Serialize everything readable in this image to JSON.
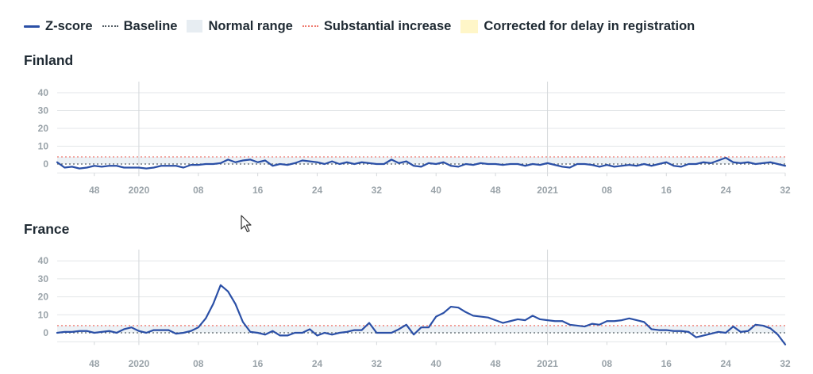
{
  "legend": {
    "zscore": "Z-score",
    "baseline": "Baseline",
    "normal_range": "Normal range",
    "substantial_increase": "Substantial increase",
    "corrected": "Corrected for delay in registration"
  },
  "colors": {
    "zscore": "#2a4fa6",
    "baseline": "#555f66",
    "normal_range": "#e7edf2",
    "substantial_increase": "#ef7b70",
    "corrected": "#fff6c8",
    "grid": "#e3e6e8",
    "year_line": "#d4d7da"
  },
  "chart_data": [
    {
      "type": "line",
      "title": "Finland",
      "xlabel": "",
      "ylabel": "",
      "ylim": [
        -5,
        45
      ],
      "y_ticks": [
        0,
        10,
        20,
        30,
        40
      ],
      "x_ticks": [
        "48",
        "2020",
        "08",
        "16",
        "24",
        "32",
        "40",
        "48",
        "2021",
        "08",
        "16",
        "24",
        "32"
      ],
      "x_tick_week_index": [
        5,
        11,
        19,
        27,
        35,
        43,
        51,
        59,
        66,
        74,
        82,
        90,
        98
      ],
      "year_boundary_week_index": [
        11,
        66
      ],
      "baseline": 0,
      "substantial_increase": 4,
      "corrected_from_week_index": 98,
      "series": [
        {
          "name": "Z-score",
          "values": [
            1,
            -2,
            -1.5,
            -2.5,
            -2,
            -1,
            -1.5,
            -1,
            -1,
            -2,
            -2,
            -2,
            -2.5,
            -2,
            -1,
            -1,
            -1,
            -2,
            -0.5,
            -0.5,
            0,
            0,
            0.5,
            2.5,
            1,
            2,
            2.5,
            1,
            2,
            -1,
            0,
            -0.5,
            0.5,
            2,
            1.5,
            1,
            0,
            1.5,
            0,
            1,
            0,
            1,
            0.5,
            0,
            0,
            2.5,
            0.5,
            1.5,
            -1,
            -1.5,
            0.5,
            0,
            1,
            -1,
            -1.5,
            0,
            -0.5,
            0.5,
            0,
            0,
            -0.5,
            0,
            0,
            -1,
            0,
            -0.5,
            0.5,
            -0.5,
            -1.5,
            -2,
            0,
            0,
            -0.5,
            -1.5,
            -0.5,
            -1.5,
            -1,
            -0.5,
            -1,
            0,
            -1,
            0,
            1,
            -1,
            -1.5,
            0,
            0,
            1,
            0.5,
            2,
            3.5,
            1,
            0.5,
            1,
            0,
            0.5,
            1,
            0,
            -1
          ]
        }
      ]
    },
    {
      "type": "line",
      "title": "France",
      "xlabel": "",
      "ylabel": "",
      "ylim": [
        -5,
        45
      ],
      "y_ticks": [
        0,
        10,
        20,
        30,
        40
      ],
      "x_ticks": [
        "48",
        "2020",
        "08",
        "16",
        "24",
        "32",
        "40",
        "48",
        "2021",
        "08",
        "16",
        "24",
        "32"
      ],
      "x_tick_week_index": [
        5,
        11,
        19,
        27,
        35,
        43,
        51,
        59,
        66,
        74,
        82,
        90,
        98
      ],
      "year_boundary_week_index": [
        11,
        66
      ],
      "baseline": 0,
      "substantial_increase": 4,
      "corrected_from_week_index": 98,
      "series": [
        {
          "name": "Z-score",
          "values": [
            0,
            0.5,
            0.5,
            1,
            1,
            0,
            0.5,
            1,
            0,
            2,
            3,
            1,
            0,
            1.5,
            1.5,
            1.5,
            -0.5,
            0,
            1,
            3,
            8,
            16,
            26.5,
            23,
            16,
            6,
            0.5,
            0,
            -1,
            1,
            -1.5,
            -1.5,
            0,
            0,
            2,
            -1.5,
            0,
            -1,
            0,
            0.5,
            1.5,
            1.5,
            5.5,
            0,
            0,
            0,
            2,
            4.5,
            -1,
            3,
            3,
            9,
            11,
            14.5,
            14,
            11.5,
            9.5,
            9,
            8.5,
            7,
            5.5,
            6.5,
            7.5,
            7,
            9.5,
            7.5,
            7,
            6.5,
            6.5,
            4.5,
            4,
            3.5,
            5,
            4.5,
            6.5,
            6.5,
            7,
            8,
            7,
            6,
            2,
            1.5,
            1.5,
            1,
            1,
            0.5,
            -2.5,
            -1.5,
            -0.5,
            0.5,
            0,
            3.5,
            0.5,
            1,
            4.5,
            4,
            2.5,
            -1,
            -6.5
          ]
        }
      ]
    }
  ]
}
